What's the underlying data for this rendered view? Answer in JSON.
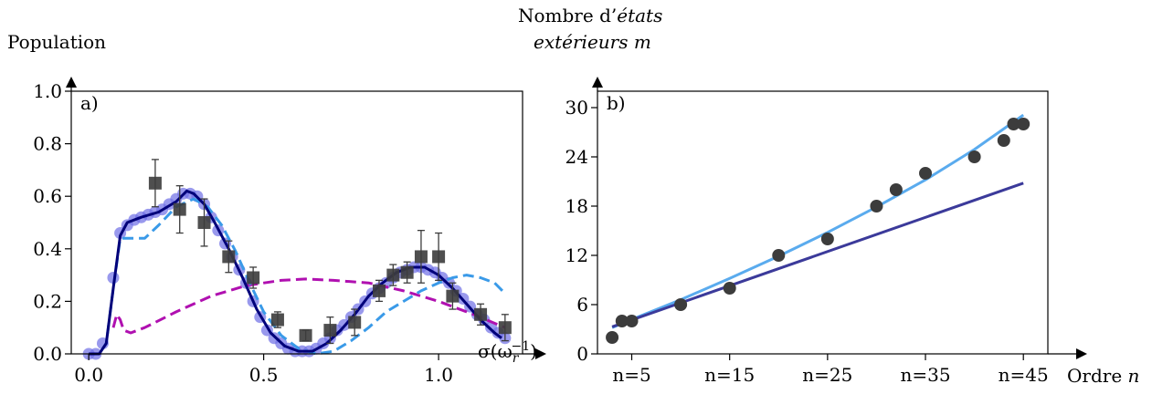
{
  "chart_data": [
    {
      "panel_label": "a)",
      "type": "line",
      "ylabel": "Population",
      "xlabel": "σ(ω",
      "xlabel_sub": "r",
      "xlabel_sup": "−1",
      "xlabel_close": ")",
      "xlim": [
        -0.05,
        1.24
      ],
      "ylim": [
        0.0,
        1.0
      ],
      "xticks": [
        0.0,
        0.5,
        1.0
      ],
      "xtick_labels": [
        "0.0",
        "0.5",
        "1.0"
      ],
      "yticks": [
        0.0,
        0.2,
        0.4,
        0.6,
        0.8,
        1.0
      ],
      "ytick_labels": [
        "0.0",
        "0.2",
        "0.4",
        "0.6",
        "0.8",
        "1.0"
      ],
      "series": [
        {
          "kind": "line",
          "style": "solid",
          "color": "#00007a",
          "points": [
            [
              0.0,
              0.0
            ],
            [
              0.03,
              0.0
            ],
            [
              0.05,
              0.04
            ],
            [
              0.07,
              0.25
            ],
            [
              0.09,
              0.45
            ],
            [
              0.11,
              0.5
            ],
            [
              0.15,
              0.52
            ],
            [
              0.2,
              0.54
            ],
            [
              0.25,
              0.58
            ],
            [
              0.28,
              0.62
            ],
            [
              0.3,
              0.61
            ],
            [
              0.33,
              0.57
            ],
            [
              0.36,
              0.5
            ],
            [
              0.4,
              0.4
            ],
            [
              0.44,
              0.29
            ],
            [
              0.48,
              0.17
            ],
            [
              0.52,
              0.08
            ],
            [
              0.56,
              0.03
            ],
            [
              0.6,
              0.01
            ],
            [
              0.64,
              0.01
            ],
            [
              0.68,
              0.04
            ],
            [
              0.72,
              0.09
            ],
            [
              0.76,
              0.15
            ],
            [
              0.8,
              0.22
            ],
            [
              0.84,
              0.27
            ],
            [
              0.88,
              0.31
            ],
            [
              0.92,
              0.33
            ],
            [
              0.96,
              0.33
            ],
            [
              1.0,
              0.3
            ],
            [
              1.04,
              0.25
            ],
            [
              1.08,
              0.19
            ],
            [
              1.12,
              0.13
            ],
            [
              1.16,
              0.08
            ],
            [
              1.18,
              0.06
            ]
          ]
        },
        {
          "kind": "line",
          "style": "dashed",
          "color": "#3a9ae8",
          "points": [
            [
              0.0,
              0.0
            ],
            [
              0.03,
              0.0
            ],
            [
              0.05,
              0.04
            ],
            [
              0.07,
              0.25
            ],
            [
              0.09,
              0.44
            ],
            [
              0.12,
              0.44
            ],
            [
              0.16,
              0.44
            ],
            [
              0.2,
              0.49
            ],
            [
              0.25,
              0.56
            ],
            [
              0.3,
              0.59
            ],
            [
              0.34,
              0.56
            ],
            [
              0.38,
              0.49
            ],
            [
              0.42,
              0.39
            ],
            [
              0.46,
              0.27
            ],
            [
              0.5,
              0.16
            ],
            [
              0.55,
              0.07
            ],
            [
              0.6,
              0.02
            ],
            [
              0.65,
              0.0
            ],
            [
              0.7,
              0.01
            ],
            [
              0.75,
              0.05
            ],
            [
              0.8,
              0.1
            ],
            [
              0.85,
              0.16
            ],
            [
              0.9,
              0.2
            ],
            [
              0.95,
              0.24
            ],
            [
              1.0,
              0.27
            ],
            [
              1.04,
              0.29
            ],
            [
              1.08,
              0.3
            ],
            [
              1.12,
              0.29
            ],
            [
              1.16,
              0.27
            ],
            [
              1.19,
              0.23
            ]
          ]
        },
        {
          "kind": "line",
          "style": "dashed",
          "color": "#b010b0",
          "points": [
            [
              0.07,
              0.1
            ],
            [
              0.08,
              0.15
            ],
            [
              0.09,
              0.13
            ],
            [
              0.1,
              0.09
            ],
            [
              0.12,
              0.08
            ],
            [
              0.16,
              0.1
            ],
            [
              0.25,
              0.16
            ],
            [
              0.35,
              0.22
            ],
            [
              0.45,
              0.26
            ],
            [
              0.55,
              0.28
            ],
            [
              0.62,
              0.285
            ],
            [
              0.7,
              0.28
            ],
            [
              0.8,
              0.27
            ],
            [
              0.9,
              0.24
            ],
            [
              1.0,
              0.2
            ],
            [
              1.1,
              0.15
            ],
            [
              1.19,
              0.1
            ]
          ]
        },
        {
          "kind": "scatter",
          "marker": "circle",
          "color": "#6e6ee6",
          "points": [
            [
              0.0,
              0.0
            ],
            [
              0.02,
              0.0
            ],
            [
              0.04,
              0.04
            ],
            [
              0.07,
              0.29
            ],
            [
              0.09,
              0.46
            ],
            [
              0.11,
              0.49
            ],
            [
              0.13,
              0.51
            ],
            [
              0.15,
              0.52
            ],
            [
              0.17,
              0.53
            ],
            [
              0.19,
              0.54
            ],
            [
              0.21,
              0.55
            ],
            [
              0.23,
              0.57
            ],
            [
              0.25,
              0.59
            ],
            [
              0.27,
              0.61
            ],
            [
              0.29,
              0.61
            ],
            [
              0.31,
              0.6
            ],
            [
              0.33,
              0.57
            ],
            [
              0.35,
              0.52
            ],
            [
              0.37,
              0.47
            ],
            [
              0.39,
              0.42
            ],
            [
              0.41,
              0.37
            ],
            [
              0.43,
              0.32
            ],
            [
              0.45,
              0.27
            ],
            [
              0.47,
              0.2
            ],
            [
              0.49,
              0.14
            ],
            [
              0.51,
              0.09
            ],
            [
              0.53,
              0.06
            ],
            [
              0.55,
              0.04
            ],
            [
              0.57,
              0.02
            ],
            [
              0.59,
              0.01
            ],
            [
              0.61,
              0.01
            ],
            [
              0.63,
              0.01
            ],
            [
              0.65,
              0.02
            ],
            [
              0.67,
              0.04
            ],
            [
              0.69,
              0.06
            ],
            [
              0.71,
              0.09
            ],
            [
              0.73,
              0.11
            ],
            [
              0.75,
              0.14
            ],
            [
              0.77,
              0.17
            ],
            [
              0.79,
              0.2
            ],
            [
              0.81,
              0.23
            ],
            [
              0.83,
              0.25
            ],
            [
              0.85,
              0.27
            ],
            [
              0.87,
              0.29
            ],
            [
              0.89,
              0.31
            ],
            [
              0.91,
              0.32
            ],
            [
              0.93,
              0.33
            ],
            [
              0.95,
              0.33
            ],
            [
              0.97,
              0.32
            ],
            [
              0.99,
              0.31
            ],
            [
              1.01,
              0.29
            ],
            [
              1.03,
              0.27
            ],
            [
              1.05,
              0.24
            ],
            [
              1.07,
              0.21
            ],
            [
              1.09,
              0.18
            ],
            [
              1.11,
              0.15
            ],
            [
              1.13,
              0.13
            ],
            [
              1.15,
              0.1
            ],
            [
              1.17,
              0.08
            ],
            [
              1.19,
              0.06
            ]
          ]
        },
        {
          "kind": "errorbar",
          "marker": "square",
          "color": "#3c3c3c",
          "points": [
            [
              0.19,
              0.65,
              0.09
            ],
            [
              0.26,
              0.55,
              0.09
            ],
            [
              0.33,
              0.5,
              0.09
            ],
            [
              0.4,
              0.37,
              0.06
            ],
            [
              0.47,
              0.29,
              0.04
            ],
            [
              0.54,
              0.13,
              0.03
            ],
            [
              0.62,
              0.07,
              0.02
            ],
            [
              0.69,
              0.09,
              0.05
            ],
            [
              0.76,
              0.12,
              0.05
            ],
            [
              0.83,
              0.24,
              0.04
            ],
            [
              0.87,
              0.3,
              0.04
            ],
            [
              0.91,
              0.31,
              0.04
            ],
            [
              0.95,
              0.37,
              0.1
            ],
            [
              1.0,
              0.37,
              0.09
            ],
            [
              1.04,
              0.22,
              0.05
            ],
            [
              1.12,
              0.15,
              0.04
            ],
            [
              1.19,
              0.1,
              0.05
            ]
          ]
        }
      ]
    },
    {
      "panel_label": "b)",
      "type": "scatter",
      "ylabel_line1": "Nombre d’",
      "ylabel_line1_italic": "états",
      "ylabel_line2": "extérieurs m",
      "xlabel": "Ordre ",
      "xlabel_italic": "n",
      "xlim": [
        1.5,
        47.5
      ],
      "ylim": [
        0,
        32
      ],
      "xticks": [
        5,
        15,
        25,
        35,
        45
      ],
      "xtick_labels": [
        "n=5",
        "n=15",
        "n=25",
        "n=35",
        "n=45"
      ],
      "yticks": [
        0,
        6,
        12,
        18,
        24,
        30
      ],
      "ytick_labels": [
        "0",
        "6",
        "12",
        "18",
        "24",
        "30"
      ],
      "series": [
        {
          "kind": "line",
          "color": "#5aabee",
          "points": [
            [
              3,
              3.2
            ],
            [
              5,
              4.2
            ],
            [
              10,
              6.6
            ],
            [
              15,
              9.2
            ],
            [
              20,
              11.9
            ],
            [
              25,
              14.8
            ],
            [
              30,
              17.9
            ],
            [
              35,
              21.2
            ],
            [
              40,
              24.9
            ],
            [
              45,
              29.1
            ]
          ]
        },
        {
          "kind": "line",
          "color": "#3b3a9a",
          "points": [
            [
              3,
              3.3
            ],
            [
              45,
              20.8
            ]
          ]
        },
        {
          "kind": "scatter",
          "color": "#3c3c3c",
          "points": [
            [
              3,
              2
            ],
            [
              4,
              4
            ],
            [
              5,
              4
            ],
            [
              10,
              6
            ],
            [
              15,
              8
            ],
            [
              20,
              12
            ],
            [
              25,
              14
            ],
            [
              30,
              18
            ],
            [
              32,
              20
            ],
            [
              35,
              22
            ],
            [
              40,
              24
            ],
            [
              43,
              26
            ],
            [
              44,
              28
            ],
            [
              45,
              28
            ]
          ]
        }
      ]
    }
  ]
}
